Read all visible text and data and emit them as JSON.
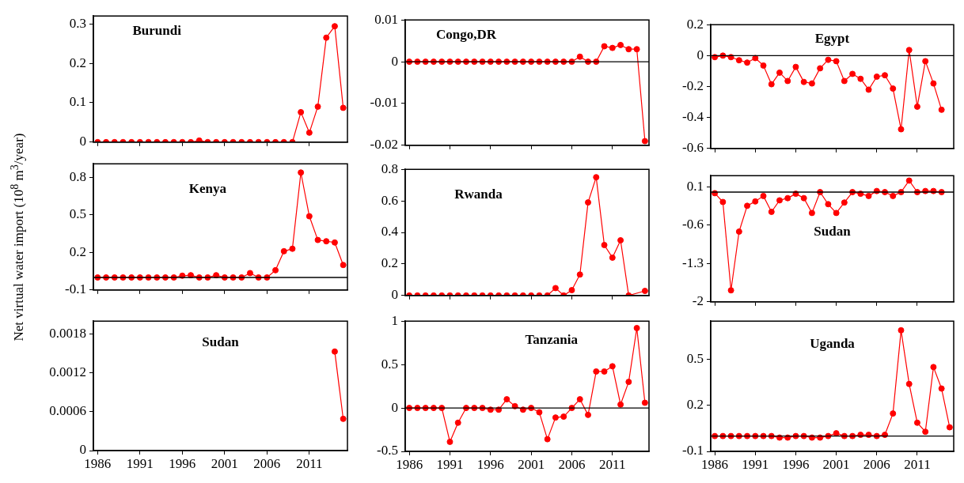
{
  "chart_data": [
    {
      "type": "line",
      "title": "Burundi",
      "x": [
        1986,
        1987,
        1988,
        1989,
        1990,
        1991,
        1992,
        1993,
        1994,
        1995,
        1996,
        1997,
        1998,
        1999,
        2000,
        2001,
        2002,
        2003,
        2004,
        2005,
        2006,
        2007,
        2008,
        2009,
        2010,
        2011,
        2012,
        2013,
        2014,
        2015
      ],
      "series": [
        {
          "color": "#ff0000",
          "values": [
            0,
            0,
            0,
            0,
            0,
            0,
            0,
            0,
            0,
            0,
            0,
            0,
            0.004,
            0,
            0,
            0,
            0,
            0,
            0,
            0,
            0,
            0,
            0,
            0,
            0.076,
            0.024,
            0.09,
            0.265,
            0.294,
            0.087
          ]
        }
      ],
      "xlim": [
        1985.5,
        2015.5
      ],
      "xticks": [
        1986,
        1991,
        1996,
        2001,
        2006,
        2011
      ],
      "ylim": [
        0,
        0.32
      ],
      "yticks": [
        0,
        0.1,
        0.2,
        0.3
      ],
      "tick_labels": "y",
      "marker": "circle"
    },
    {
      "type": "line",
      "title": "Congo,DR",
      "x": [
        1986,
        1987,
        1988,
        1989,
        1990,
        1991,
        1992,
        1993,
        1994,
        1995,
        1996,
        1997,
        1998,
        1999,
        2000,
        2001,
        2002,
        2003,
        2004,
        2005,
        2006,
        2007,
        2008,
        2009,
        2010,
        2011,
        2012,
        2013,
        2014,
        2015
      ],
      "series": [
        {
          "color": "#ff0000",
          "values": [
            0,
            0,
            0,
            0,
            0,
            0,
            0,
            0,
            0,
            0,
            0,
            0,
            0,
            0,
            0,
            0,
            0,
            0,
            0,
            0,
            0,
            0.0012,
            0,
            0,
            0.0037,
            0.0033,
            0.004,
            0.003,
            0.003,
            -0.019
          ]
        }
      ],
      "xlim": [
        1985.5,
        2015.5
      ],
      "xticks": [
        1986,
        1991,
        1996,
        2001,
        2006,
        2011
      ],
      "ylim": [
        -0.02,
        0.01
      ],
      "yticks": [
        -0.02,
        -0.01,
        0,
        0.01
      ],
      "tick_labels": "y",
      "marker": "circle",
      "ref_lines": [
        {
          "axis": "y",
          "value": 0
        }
      ]
    },
    {
      "type": "line",
      "title": "Egypt",
      "x": [
        1986,
        1987,
        1988,
        1989,
        1990,
        1991,
        1992,
        1993,
        1994,
        1995,
        1996,
        1997,
        1998,
        1999,
        2000,
        2001,
        2002,
        2003,
        2004,
        2005,
        2006,
        2007,
        2008,
        2009,
        2010,
        2011,
        2012,
        2013,
        2014
      ],
      "series": [
        {
          "color": "#ff0000",
          "values": [
            -0.01,
            0,
            -0.01,
            -0.03,
            -0.045,
            -0.016,
            -0.064,
            -0.185,
            -0.11,
            -0.164,
            -0.073,
            -0.17,
            -0.18,
            -0.082,
            -0.027,
            -0.036,
            -0.164,
            -0.118,
            -0.15,
            -0.22,
            -0.136,
            -0.127,
            -0.213,
            -0.476,
            0.036,
            -0.33,
            -0.036,
            -0.18,
            -0.35
          ]
        }
      ],
      "xlim": [
        1985.5,
        2015.5
      ],
      "xticks": [
        1986,
        1991,
        1996,
        2001,
        2006,
        2011
      ],
      "ylim": [
        -0.6,
        0.2
      ],
      "yticks": [
        -0.6,
        -0.4,
        -0.2,
        0,
        0.2
      ],
      "tick_labels": "y",
      "marker": "circle",
      "ref_lines": [
        {
          "axis": "y",
          "value": 0
        }
      ]
    },
    {
      "type": "line",
      "title": "Kenya",
      "ylabel": "Net virtual water import (10$^{8}$ m$^{3}$/year)",
      "x": [
        1986,
        1987,
        1988,
        1989,
        1990,
        1991,
        1992,
        1993,
        1994,
        1995,
        1996,
        1997,
        1998,
        1999,
        2000,
        2001,
        2002,
        2003,
        2004,
        2005,
        2006,
        2007,
        2008,
        2009,
        2010,
        2011,
        2012,
        2013,
        2014,
        2015
      ],
      "series": [
        {
          "color": "#ff0000",
          "values": [
            0,
            0,
            0,
            0,
            0,
            0,
            0,
            0,
            0,
            0,
            0.014,
            0.018,
            0,
            0,
            0.018,
            0,
            0,
            0,
            0.035,
            0,
            0,
            0.058,
            0.21,
            0.23,
            0.84,
            0.49,
            0.3,
            0.29,
            0.28,
            0.1
          ]
        }
      ],
      "xlim": [
        1985.5,
        2015.5
      ],
      "xticks": [
        1986,
        1991,
        1996,
        2001,
        2006,
        2011
      ],
      "ylim": [
        -0.1,
        0.91
      ],
      "yticks": [
        -0.1,
        0.2,
        0.5,
        0.8
      ],
      "tick_labels": "y",
      "marker": "circle",
      "ref_lines": [
        {
          "axis": "y",
          "value": 0
        }
      ]
    },
    {
      "type": "line",
      "title": "Rwanda",
      "x": [
        1986,
        1987,
        1988,
        1989,
        1990,
        1991,
        1992,
        1993,
        1994,
        1995,
        1996,
        1997,
        1998,
        1999,
        2000,
        2001,
        2002,
        2003,
        2004,
        2005,
        2006,
        2007,
        2008,
        2009,
        2010,
        2011,
        2012,
        2013,
        2015
      ],
      "series": [
        {
          "color": "#ff0000",
          "values": [
            0,
            0,
            0,
            0,
            0,
            0,
            0,
            0,
            0,
            0,
            0,
            0,
            0,
            0,
            0,
            0,
            0,
            0,
            0.047,
            0,
            0.034,
            0.133,
            0.59,
            0.75,
            0.32,
            0.24,
            0.35,
            0,
            0.029
          ]
        }
      ],
      "xlim": [
        1985.5,
        2015.5
      ],
      "xticks": [
        1986,
        1991,
        1996,
        2001,
        2006,
        2011
      ],
      "ylim": [
        0,
        0.8
      ],
      "yticks": [
        0,
        0.2,
        0.4,
        0.6,
        0.8
      ],
      "tick_labels": "y",
      "marker": "circle"
    },
    {
      "type": "line",
      "title": "Sudan",
      "x": [
        1986,
        1987,
        1988,
        1989,
        1990,
        1991,
        1992,
        1993,
        1994,
        1995,
        1996,
        1997,
        1998,
        1999,
        2000,
        2001,
        2002,
        2003,
        2004,
        2005,
        2006,
        2007,
        2008,
        2009,
        2010,
        2011,
        2012,
        2013,
        2014
      ],
      "series": [
        {
          "color": "#ff0000",
          "values": [
            -0.02,
            -0.18,
            -1.79,
            -0.72,
            -0.25,
            -0.17,
            -0.07,
            -0.36,
            -0.15,
            -0.11,
            -0.03,
            -0.11,
            -0.38,
            0,
            -0.22,
            -0.38,
            -0.19,
            0,
            -0.03,
            -0.07,
            0.02,
            0,
            -0.07,
            0,
            0.21,
            0,
            0.02,
            0.02,
            0
          ]
        }
      ],
      "xlim": [
        1985.5,
        2015.5
      ],
      "xticks": [
        1986,
        1991,
        1996,
        2001,
        2006,
        2011
      ],
      "ylim": [
        -2,
        0.3
      ],
      "yticks": [
        -2,
        -1.3,
        -0.6,
        0.1
      ],
      "tick_labels": "y",
      "marker": "circle",
      "ref_lines": [
        {
          "axis": "y",
          "value": 0
        }
      ]
    },
    {
      "type": "line",
      "title": "Sudan",
      "x": [
        2014,
        2015
      ],
      "series": [
        {
          "color": "#ff0000",
          "values": [
            0.00153,
            0.00049
          ]
        }
      ],
      "xlim": [
        1985.5,
        2015.5
      ],
      "xticks": [
        1986,
        1991,
        1996,
        2001,
        2006,
        2011
      ],
      "ylim": [
        0,
        0.002
      ],
      "yticks": [
        0,
        0.0006,
        0.0012,
        0.0018
      ],
      "marker": "circle"
    },
    {
      "type": "line",
      "title": "Tanzania",
      "x": [
        1986,
        1987,
        1988,
        1989,
        1990,
        1991,
        1992,
        1993,
        1994,
        1995,
        1996,
        1997,
        1998,
        1999,
        2000,
        2001,
        2002,
        2003,
        2004,
        2005,
        2006,
        2007,
        2008,
        2009,
        2010,
        2011,
        2012,
        2013,
        2014,
        2015
      ],
      "series": [
        {
          "color": "#ff0000",
          "values": [
            0,
            0,
            0,
            0,
            0,
            -0.39,
            -0.17,
            0,
            0,
            0,
            -0.02,
            -0.02,
            0.1,
            0.02,
            -0.02,
            0,
            -0.05,
            -0.36,
            -0.11,
            -0.1,
            0,
            0.1,
            -0.08,
            0.42,
            0.42,
            0.48,
            0.04,
            0.3,
            0.92,
            0.06
          ]
        }
      ],
      "xlim": [
        1985.5,
        2015.5
      ],
      "xticks": [
        1986,
        1991,
        1996,
        2001,
        2006,
        2011
      ],
      "ylim": [
        -0.5,
        1
      ],
      "yticks": [
        -0.5,
        0,
        0.5,
        1
      ],
      "marker": "circle",
      "ref_lines": [
        {
          "axis": "y",
          "value": 0
        }
      ]
    },
    {
      "type": "line",
      "title": "Uganda",
      "x": [
        1986,
        1987,
        1988,
        1989,
        1990,
        1991,
        1992,
        1993,
        1994,
        1995,
        1996,
        1997,
        1998,
        1999,
        2000,
        2001,
        2002,
        2003,
        2004,
        2005,
        2006,
        2007,
        2008,
        2009,
        2010,
        2011,
        2012,
        2013,
        2014,
        2015
      ],
      "series": [
        {
          "color": "#ff0000",
          "values": [
            0,
            0,
            0,
            0,
            0,
            0,
            0,
            0,
            -0.01,
            -0.01,
            0,
            0,
            -0.01,
            -0.01,
            0,
            0.018,
            0,
            0,
            0.008,
            0.008,
            0,
            0.008,
            0.147,
            0.69,
            0.34,
            0.087,
            0.028,
            0.45,
            0.31,
            0.057
          ]
        }
      ],
      "xlim": [
        1985.5,
        2015.5
      ],
      "xticks": [
        1986,
        1991,
        1996,
        2001,
        2006,
        2011
      ],
      "ylim": [
        -0.1,
        0.75
      ],
      "yticks": [
        -0.1,
        0.2,
        0.5
      ],
      "marker": "circle",
      "ref_lines": [
        {
          "axis": "y",
          "value": 0
        }
      ]
    }
  ]
}
